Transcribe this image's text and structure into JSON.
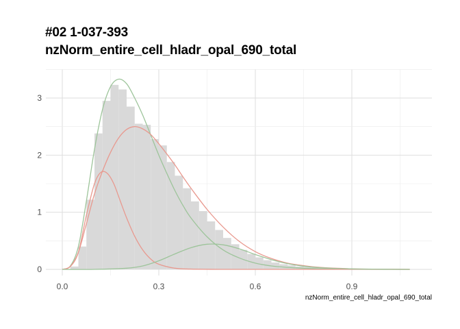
{
  "chart_data": {
    "type": "histogram",
    "title_line1": "#02 1-037-393",
    "title_line2": "nzNorm_entire_cell_hladr_opal_690_total",
    "xlabel": "nzNorm_entire_cell_hladr_opal_690_total",
    "ylabel": "",
    "xlim": [
      -0.05,
      1.15
    ],
    "ylim": [
      -0.1,
      3.5
    ],
    "x_ticks": [
      0.0,
      0.3,
      0.6,
      0.9
    ],
    "x_tick_labels": [
      "0.0",
      "0.3",
      "0.6",
      "0.9"
    ],
    "y_ticks": [
      0,
      1,
      2,
      3
    ],
    "y_tick_labels": [
      "0",
      "1",
      "2",
      "3"
    ],
    "grid": true,
    "histogram": {
      "bin_width": 0.025,
      "bin_starts": [
        0.025,
        0.05,
        0.075,
        0.1,
        0.125,
        0.15,
        0.175,
        0.2,
        0.225,
        0.25,
        0.275,
        0.3,
        0.325,
        0.35,
        0.375,
        0.4,
        0.425,
        0.45,
        0.475,
        0.5,
        0.525,
        0.55,
        0.575,
        0.6,
        0.625,
        0.65,
        0.675,
        0.7,
        0.725,
        0.75,
        0.775,
        0.8,
        0.825,
        0.85,
        0.875,
        0.9,
        0.925,
        0.95,
        0.975,
        1.0,
        1.025,
        1.05
      ],
      "counts": [
        0.05,
        0.4,
        1.22,
        2.38,
        2.95,
        3.23,
        3.15,
        2.85,
        2.55,
        2.53,
        2.28,
        2.17,
        1.88,
        1.64,
        1.42,
        1.19,
        1.02,
        0.84,
        0.69,
        0.55,
        0.44,
        0.34,
        0.27,
        0.21,
        0.16,
        0.12,
        0.09,
        0.07,
        0.05,
        0.04,
        0.03,
        0.025,
        0.02,
        0.015,
        0.012,
        0.01,
        0.008,
        0.006,
        0.004,
        0.003,
        0.002,
        0.001
      ],
      "color": "#d9d9d9"
    },
    "series": [
      {
        "color": "#9dc49a",
        "x": [
          0.0,
          0.025,
          0.05,
          0.075,
          0.1,
          0.125,
          0.15,
          0.175,
          0.2,
          0.225,
          0.25,
          0.275,
          0.3,
          0.325,
          0.35,
          0.375,
          0.4,
          0.45,
          0.5,
          0.55,
          0.6,
          0.65,
          0.7,
          0.75,
          0.8,
          0.9,
          1.0,
          1.08
        ],
        "y": [
          0.0,
          0.06,
          0.4,
          1.2,
          2.1,
          2.8,
          3.2,
          3.33,
          3.25,
          3.0,
          2.7,
          2.35,
          2.0,
          1.68,
          1.38,
          1.12,
          0.9,
          0.57,
          0.34,
          0.2,
          0.11,
          0.06,
          0.035,
          0.02,
          0.01,
          0.003,
          0.001,
          0.0
        ]
      },
      {
        "color": "#e8998f",
        "x": [
          0.0,
          0.025,
          0.05,
          0.075,
          0.1,
          0.125,
          0.15,
          0.175,
          0.2,
          0.225,
          0.25,
          0.275,
          0.3,
          0.325,
          0.35,
          0.375,
          0.4,
          0.45,
          0.5,
          0.55,
          0.6,
          0.65,
          0.7,
          0.75,
          0.8,
          0.9,
          1.0,
          1.08
        ],
        "y": [
          0.0,
          0.05,
          0.3,
          0.8,
          1.32,
          1.72,
          2.05,
          2.3,
          2.45,
          2.5,
          2.46,
          2.36,
          2.2,
          2.02,
          1.83,
          1.62,
          1.42,
          1.05,
          0.74,
          0.49,
          0.31,
          0.19,
          0.11,
          0.065,
          0.035,
          0.01,
          0.003,
          0.0
        ]
      },
      {
        "color": "#e8998f",
        "x": [
          0.0,
          0.025,
          0.05,
          0.075,
          0.1,
          0.12,
          0.14,
          0.16,
          0.18,
          0.2,
          0.225,
          0.25,
          0.275,
          0.3,
          0.35,
          0.4,
          0.5,
          0.6,
          0.8,
          1.08
        ],
        "y": [
          0.0,
          0.05,
          0.3,
          0.95,
          1.5,
          1.7,
          1.68,
          1.5,
          1.2,
          0.9,
          0.58,
          0.34,
          0.18,
          0.09,
          0.02,
          0.005,
          0.0,
          0.0,
          0.0,
          0.0
        ]
      },
      {
        "color": "#9dc49a",
        "x": [
          0.0,
          0.1,
          0.2,
          0.25,
          0.3,
          0.35,
          0.4,
          0.45,
          0.5,
          0.55,
          0.6,
          0.65,
          0.7,
          0.75,
          0.8,
          0.9,
          1.0,
          1.08
        ],
        "y": [
          0.0,
          0.0,
          0.02,
          0.06,
          0.15,
          0.27,
          0.38,
          0.44,
          0.43,
          0.36,
          0.26,
          0.17,
          0.1,
          0.055,
          0.03,
          0.008,
          0.002,
          0.0
        ]
      }
    ]
  }
}
